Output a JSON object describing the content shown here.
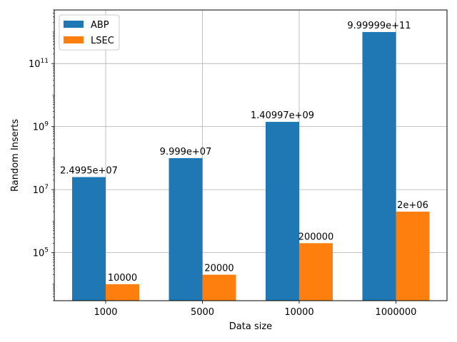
{
  "chart_data": {
    "type": "bar",
    "categories": [
      "1000",
      "5000",
      "10000",
      "1000000"
    ],
    "xlabel": "Data size",
    "ylabel": "Random Inserts",
    "yscale": "log",
    "ylim": [
      3000,
      5000000000000
    ],
    "grid": true,
    "legend_position": "top-left",
    "y_ticks": [
      {
        "value": 100000,
        "base": "10",
        "exp": "5"
      },
      {
        "value": 10000000,
        "base": "10",
        "exp": "7"
      },
      {
        "value": 1000000000,
        "base": "10",
        "exp": "9"
      },
      {
        "value": 100000000000,
        "base": "10",
        "exp": "11"
      }
    ],
    "series": [
      {
        "name": "ABP",
        "color": "#1f77b4",
        "values": [
          24995000,
          99990000,
          1409970000,
          999999000000
        ],
        "labels": [
          "2.4995e+07",
          "9.999e+07",
          "1.40997e+09",
          "9.99999e+11"
        ]
      },
      {
        "name": "LSEC",
        "color": "#ff7f0e",
        "values": [
          10000,
          20000,
          200000,
          2000000
        ],
        "labels": [
          "10000",
          "20000",
          "200000",
          "2e+06"
        ]
      }
    ]
  }
}
